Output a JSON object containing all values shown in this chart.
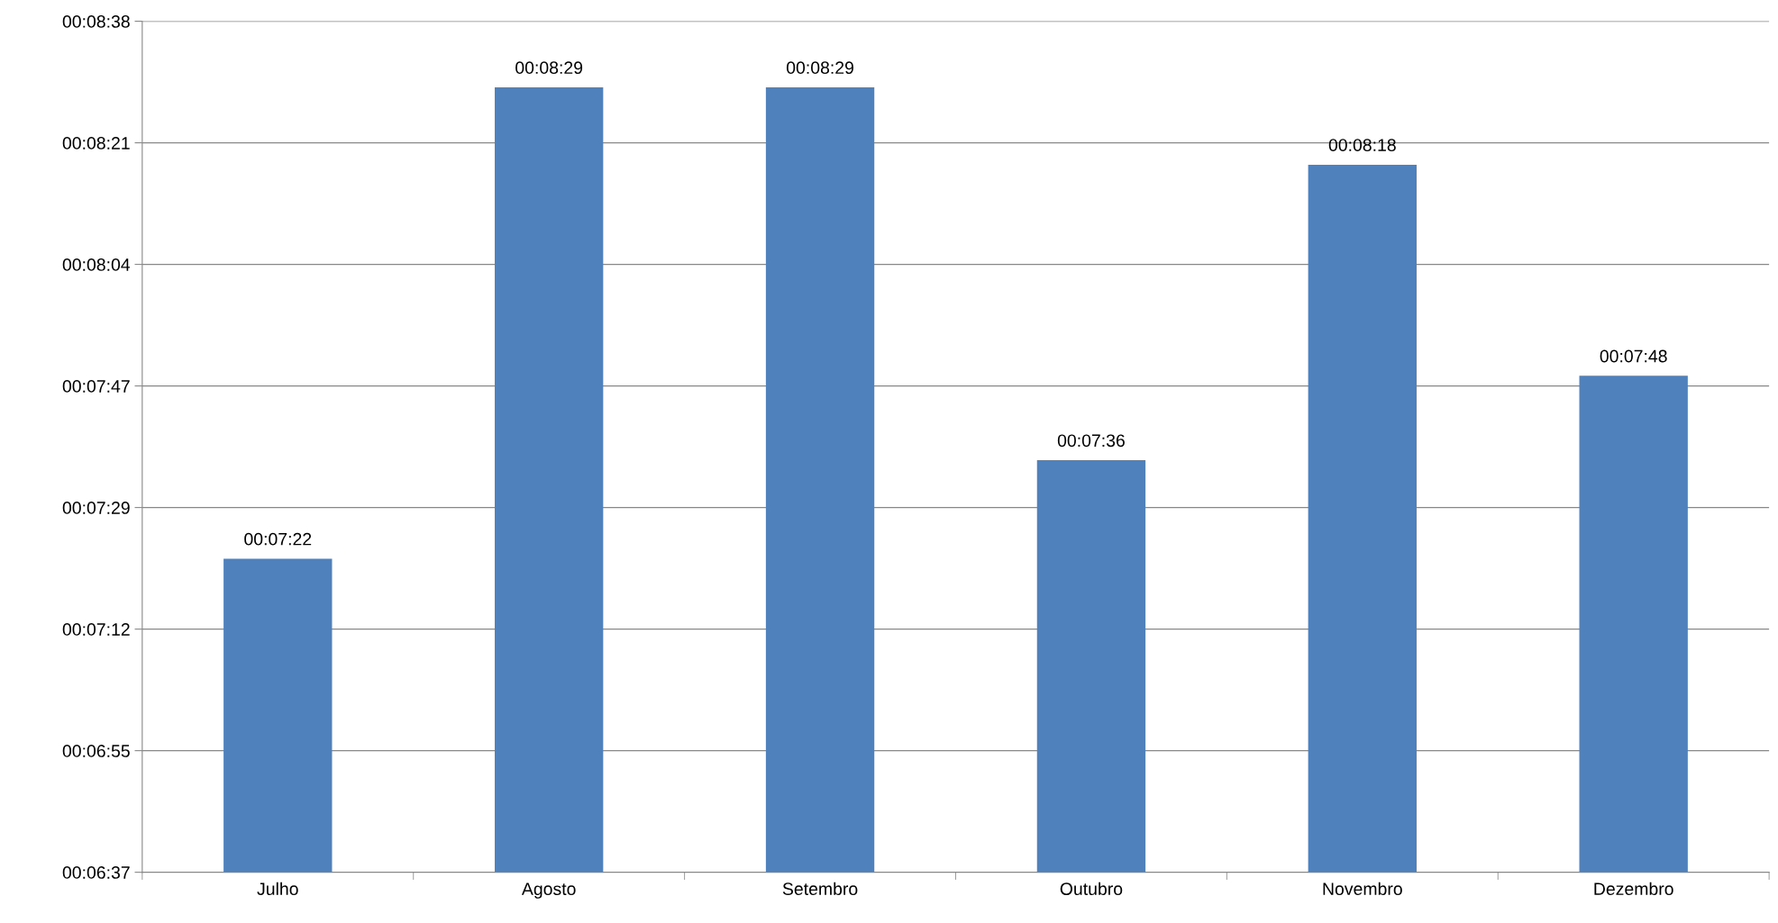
{
  "chart_data": {
    "type": "bar",
    "categories": [
      "Julho",
      "Agosto",
      "Setembro",
      "Outubro",
      "Novembro",
      "Dezembro"
    ],
    "values": [
      442,
      509,
      509,
      456,
      498,
      468
    ],
    "value_labels": [
      "00:07:22",
      "00:08:29",
      "00:08:29",
      "00:07:36",
      "00:08:18",
      "00:07:48"
    ],
    "color": "#4f81bd",
    "ylim": [
      397.44,
      518.4
    ],
    "yticks": [
      {
        "value": 397.44,
        "label": "00:06:37"
      },
      {
        "value": 414.72,
        "label": "00:06:55"
      },
      {
        "value": 432,
        "label": "00:07:12"
      },
      {
        "value": 449.28,
        "label": "00:07:29"
      },
      {
        "value": 466.56,
        "label": "00:07:47"
      },
      {
        "value": 483.84,
        "label": "00:08:04"
      },
      {
        "value": 501.12,
        "label": "00:08:21"
      },
      {
        "value": 518.4,
        "label": "00:08:38"
      }
    ],
    "grid": "y",
    "legend": false
  }
}
